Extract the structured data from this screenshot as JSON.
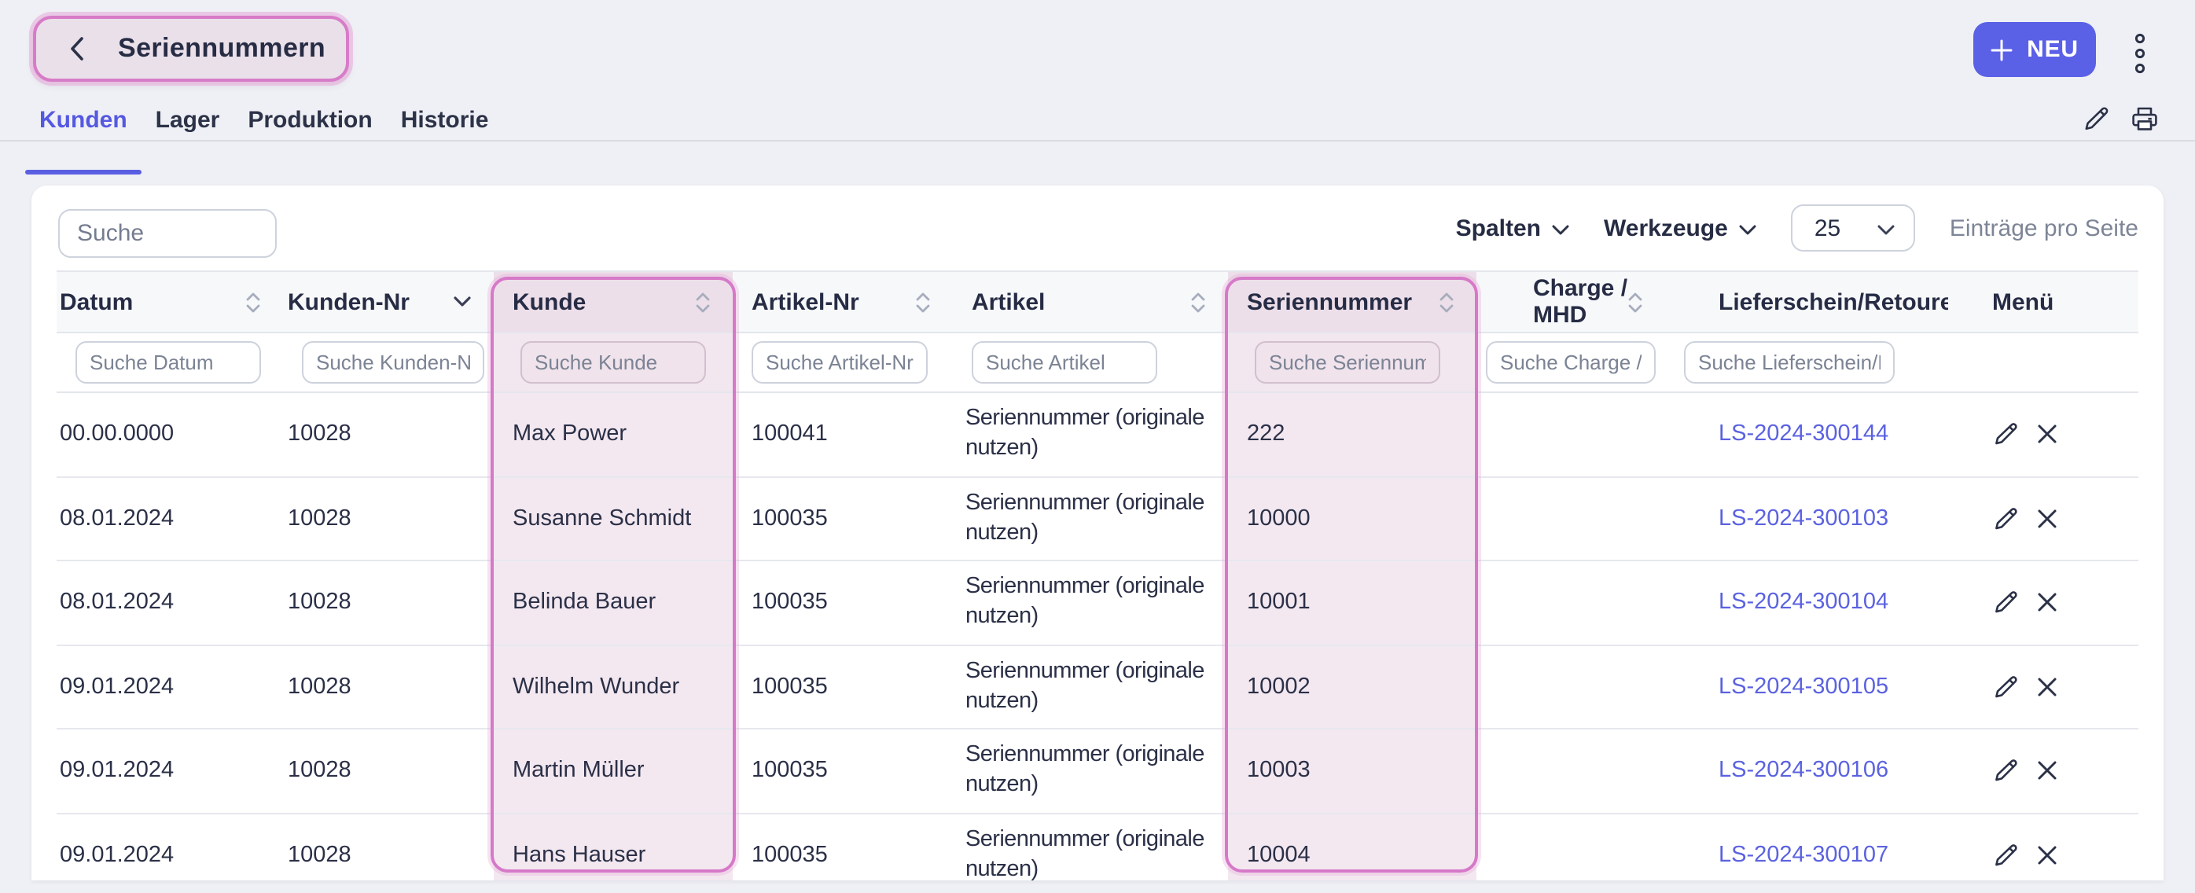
{
  "header": {
    "title": "Seriennummern",
    "neu_label": "NEU"
  },
  "tabs": [
    {
      "label": "Kunden",
      "active": true
    },
    {
      "label": "Lager",
      "active": false
    },
    {
      "label": "Produktion",
      "active": false
    },
    {
      "label": "Historie",
      "active": false
    }
  ],
  "toolbar": {
    "search_placeholder": "Suche",
    "spalten_label": "Spalten",
    "werkzeuge_label": "Werkzeuge",
    "page_size": "25",
    "entries_label": "Einträge pro Seite"
  },
  "table": {
    "columns": [
      {
        "key": "datum",
        "label": "Datum",
        "sort": "both",
        "filter_placeholder": "Suche Datum",
        "highlighted": false
      },
      {
        "key": "kunden_nr",
        "label": "Kunden-Nr",
        "sort": "down",
        "filter_placeholder": "Suche Kunden-Nr",
        "highlighted": false
      },
      {
        "key": "kunde",
        "label": "Kunde",
        "sort": "both",
        "filter_placeholder": "Suche Kunde",
        "highlighted": true
      },
      {
        "key": "artikel_nr",
        "label": "Artikel-Nr",
        "sort": "both",
        "filter_placeholder": "Suche Artikel-Nr",
        "highlighted": false
      },
      {
        "key": "artikel",
        "label": "Artikel",
        "sort": "both",
        "filter_placeholder": "Suche Artikel",
        "highlighted": false
      },
      {
        "key": "seriennummer",
        "label": "Seriennummer",
        "sort": "both",
        "filter_placeholder": "Suche Seriennummer",
        "highlighted": true
      },
      {
        "key": "charge",
        "label": "Charge / MHD",
        "sort": "both",
        "filter_placeholder": "Suche Charge / MHD",
        "highlighted": false
      },
      {
        "key": "lieferschein",
        "label": "Lieferschein/Retoure",
        "sort": "both",
        "filter_placeholder": "Suche Lieferschein/Retoure",
        "highlighted": false
      },
      {
        "key": "menu",
        "label": "Menü",
        "sort": "none",
        "filter_placeholder": "",
        "highlighted": false
      }
    ],
    "rows": [
      {
        "datum": "00.00.0000",
        "kunden_nr": "10028",
        "kunde": "Max Power",
        "artikel_nr": "100041",
        "artikel": "Seriennummer (originale nutzen)",
        "seriennummer": "222",
        "charge": "",
        "lieferschein": "LS-2024-300144"
      },
      {
        "datum": "08.01.2024",
        "kunden_nr": "10028",
        "kunde": "Susanne Schmidt",
        "artikel_nr": "100035",
        "artikel": "Seriennummer (originale nutzen)",
        "seriennummer": "10000",
        "charge": "",
        "lieferschein": "LS-2024-300103"
      },
      {
        "datum": "08.01.2024",
        "kunden_nr": "10028",
        "kunde": "Belinda Bauer",
        "artikel_nr": "100035",
        "artikel": "Seriennummer (originale nutzen)",
        "seriennummer": "10001",
        "charge": "",
        "lieferschein": "LS-2024-300104"
      },
      {
        "datum": "09.01.2024",
        "kunden_nr": "10028",
        "kunde": "Wilhelm Wunder",
        "artikel_nr": "100035",
        "artikel": "Seriennummer (originale nutzen)",
        "seriennummer": "10002",
        "charge": "",
        "lieferschein": "LS-2024-300105"
      },
      {
        "datum": "09.01.2024",
        "kunden_nr": "10028",
        "kunde": "Martin Müller",
        "artikel_nr": "100035",
        "artikel": "Seriennummer (originale nutzen)",
        "seriennummer": "10003",
        "charge": "",
        "lieferschein": "LS-2024-300106"
      },
      {
        "datum": "09.01.2024",
        "kunden_nr": "10028",
        "kunde": "Hans Hauser",
        "artikel_nr": "100035",
        "artikel": "Seriennummer (originale nutzen)",
        "seriennummer": "10004",
        "charge": "",
        "lieferschein": "LS-2024-300107"
      }
    ]
  },
  "colors": {
    "accent": "#5a61e6",
    "link": "#5b62e0",
    "highlight_border": "#d679c8",
    "highlight_fill": "#f3e8f0",
    "text": "#2b3047",
    "page_bg": "#eff0f5"
  }
}
